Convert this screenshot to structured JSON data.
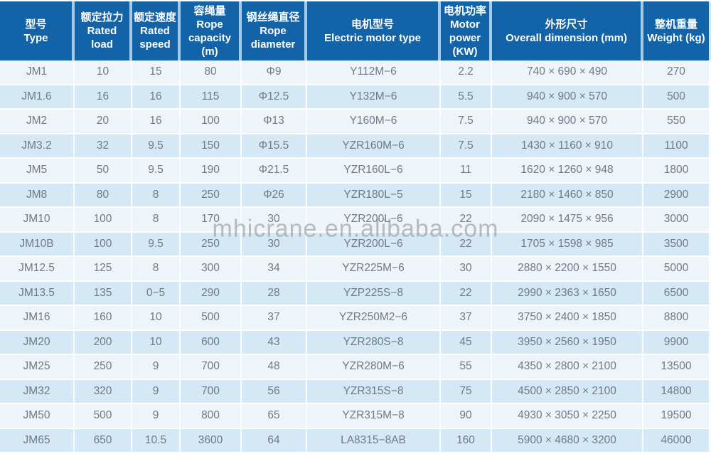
{
  "watermark": "mhicrane.en.alibaba.com",
  "colors": {
    "header_bg": "#1263a8",
    "header_text": "#ffffff",
    "header_separator": "#a6cbe8",
    "row_odd_bg": "#edf5fb",
    "row_even_bg": "#d5e8f6",
    "cell_text": "#707a84",
    "watermark_text": "#878a8c"
  },
  "table": {
    "columns": [
      {
        "zh": "型号",
        "en": "Type"
      },
      {
        "zh": "额定拉力",
        "en": "Rated load"
      },
      {
        "zh": "额定速度",
        "en": "Rated speed"
      },
      {
        "zh": "容绳量",
        "en": "Rope capacity (m)"
      },
      {
        "zh": "钢丝绳直径",
        "en": "Rope diameter"
      },
      {
        "zh": "电机型号",
        "en": "Electric motor type"
      },
      {
        "zh": "电机功率",
        "en": "Motor power (KW)"
      },
      {
        "zh": "外形尺寸",
        "en": "Overall dimension (mm)"
      },
      {
        "zh": "整机重量",
        "en": "Weight (kg)"
      }
    ],
    "rows": [
      [
        "JM1",
        "10",
        "15",
        "80",
        "Φ9",
        "Y112M−6",
        "2.2",
        "740 × 690 × 490",
        "270"
      ],
      [
        "JM1.6",
        "16",
        "16",
        "115",
        "Φ12.5",
        "Y132M−6",
        "5.5",
        "940 × 900 × 570",
        "500"
      ],
      [
        "JM2",
        "20",
        "16",
        "100",
        "Φ13",
        "Y160M−6",
        "7.5",
        "940 × 900 × 570",
        "550"
      ],
      [
        "JM3.2",
        "32",
        "9.5",
        "150",
        "Φ15.5",
        "YZR160M−6",
        "7.5",
        "1430 × 1160 × 910",
        "1100"
      ],
      [
        "JM5",
        "50",
        "9.5",
        "190",
        "Φ21.5",
        "YZR160L−6",
        "11",
        "1620 × 1260 × 948",
        "1800"
      ],
      [
        "JM8",
        "80",
        "8",
        "250",
        "Φ26",
        "YZR180L−5",
        "15",
        "2180 × 1460 × 850",
        "2900"
      ],
      [
        "JM10",
        "100",
        "8",
        "170",
        "30",
        "YZR200L−6",
        "22",
        "2090 × 1475 × 956",
        "3000"
      ],
      [
        "JM10B",
        "100",
        "9.5",
        "250",
        "30",
        "YZR200L−6",
        "22",
        "1705 × 1598 × 985",
        "3500"
      ],
      [
        "JM12.5",
        "125",
        "8",
        "300",
        "34",
        "YZR225M−6",
        "30",
        "2880 × 2200 × 1550",
        "5000"
      ],
      [
        "JM13.5",
        "135",
        "0−5",
        "290",
        "28",
        "YZP225S−8",
        "22",
        "2990 × 2363 × 1650",
        "6500"
      ],
      [
        "JM16",
        "160",
        "10",
        "500",
        "37",
        "YZR250M2−6",
        "37",
        "3750 × 2400 × 1850",
        "8800"
      ],
      [
        "JM20",
        "200",
        "10",
        "600",
        "43",
        "YZR280S−8",
        "45",
        "3950 × 2560 × 1950",
        "9900"
      ],
      [
        "JM25",
        "250",
        "9",
        "700",
        "48",
        "YZR280M−6",
        "55",
        "4350 × 2800 × 2100",
        "13500"
      ],
      [
        "JM32",
        "320",
        "9",
        "700",
        "56",
        "YZR315S−8",
        "75",
        "4500 × 2850 × 2100",
        "14800"
      ],
      [
        "JM50",
        "500",
        "9",
        "800",
        "65",
        "YZR315M−8",
        "90",
        "4930 × 3050 × 2250",
        "19500"
      ],
      [
        "JM65",
        "650",
        "10.5",
        "3600",
        "64",
        "LA8315−8AB",
        "160",
        "5900 × 4680 × 3200",
        "46000"
      ]
    ]
  }
}
